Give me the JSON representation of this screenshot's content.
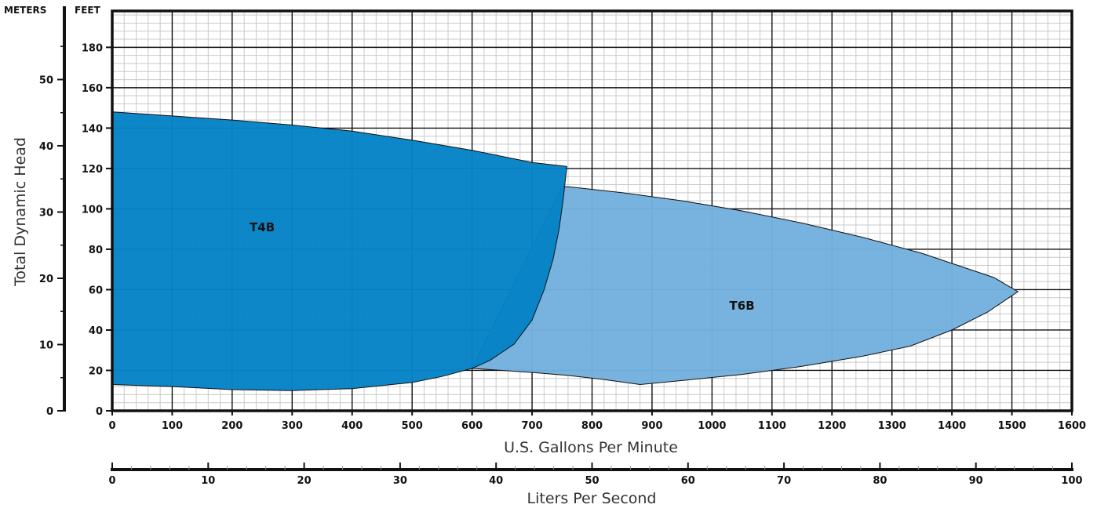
{
  "chart_data": {
    "type": "area",
    "x_axis": {
      "label": "U.S. Gallons Per Minute",
      "range": [
        0,
        1600
      ],
      "ticks": [
        0,
        100,
        200,
        300,
        400,
        500,
        600,
        700,
        800,
        900,
        1000,
        1100,
        1200,
        1300,
        1400,
        1500,
        1600
      ]
    },
    "x2_axis": {
      "label": "Liters Per Second",
      "range": [
        0,
        100
      ],
      "ticks": [
        0,
        10,
        20,
        30,
        40,
        50,
        60,
        70,
        80,
        90,
        100
      ]
    },
    "y_axis": {
      "label": "Total Dynamic Head",
      "unit": "FEET",
      "range": [
        0,
        198
      ],
      "ticks": [
        0,
        20,
        40,
        60,
        80,
        100,
        120,
        140,
        160,
        180
      ]
    },
    "y2_axis": {
      "unit": "METERS",
      "range": [
        0,
        60.35
      ],
      "ticks": [
        0,
        10,
        20,
        30,
        40,
        50
      ]
    },
    "grid": true,
    "series": [
      {
        "name": "T6B",
        "color": "#74b0dd",
        "label_position": [
          1050,
          50
        ],
        "outline": [
          [
            600,
            21
          ],
          [
            650,
            20
          ],
          [
            700,
            19
          ],
          [
            760,
            17.5
          ],
          [
            820,
            15.5
          ],
          [
            880,
            13
          ],
          [
            950,
            15
          ],
          [
            1050,
            18
          ],
          [
            1150,
            22
          ],
          [
            1250,
            27
          ],
          [
            1330,
            32
          ],
          [
            1400,
            40
          ],
          [
            1460,
            49
          ],
          [
            1510,
            59
          ],
          [
            1470,
            66
          ],
          [
            1420,
            71
          ],
          [
            1350,
            78
          ],
          [
            1250,
            86
          ],
          [
            1150,
            93
          ],
          [
            1050,
            99
          ],
          [
            950,
            104
          ],
          [
            850,
            108
          ],
          [
            760,
            111
          ],
          [
            750,
            111
          ]
        ]
      },
      {
        "name": "T4B",
        "color": "#0583c6",
        "label_position": [
          250,
          89
        ],
        "outline": [
          [
            0,
            148
          ],
          [
            100,
            146
          ],
          [
            200,
            144
          ],
          [
            300,
            141.5
          ],
          [
            400,
            138.5
          ],
          [
            500,
            134
          ],
          [
            600,
            129
          ],
          [
            700,
            123
          ],
          [
            758,
            121
          ],
          [
            752,
            105
          ],
          [
            745,
            90
          ],
          [
            735,
            75
          ],
          [
            720,
            60
          ],
          [
            700,
            45
          ],
          [
            670,
            33
          ],
          [
            630,
            25
          ],
          [
            600,
            21
          ],
          [
            550,
            17
          ],
          [
            500,
            14
          ],
          [
            400,
            11
          ],
          [
            300,
            10
          ],
          [
            200,
            10.5
          ],
          [
            100,
            12
          ],
          [
            0,
            13
          ]
        ]
      }
    ]
  }
}
